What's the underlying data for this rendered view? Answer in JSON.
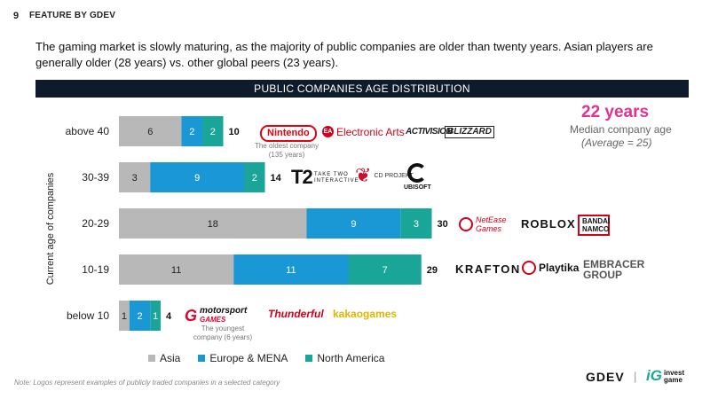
{
  "header": {
    "page_number": "9",
    "section_title": "FEATURE BY GDEV"
  },
  "intro": "The gaming market is slowly maturing, as the majority of public companies are older than twenty years. Asian players are generally older (28 years) vs. other global peers (23 years).",
  "chart_data": {
    "type": "bar",
    "orientation": "horizontal",
    "stacked": true,
    "title": "PUBLIC COMPANIES AGE DISTRIBUTION",
    "ylabel": "Current age of companies",
    "xlabel": "",
    "categories": [
      "above 40",
      "30-39",
      "20-29",
      "10-19",
      "below 10"
    ],
    "series": [
      {
        "name": "Asia",
        "values": [
          6,
          3,
          18,
          11,
          1
        ]
      },
      {
        "name": "Europe & MENA",
        "values": [
          2,
          9,
          9,
          11,
          2
        ]
      },
      {
        "name": "North America",
        "values": [
          2,
          2,
          3,
          7,
          1
        ]
      }
    ],
    "totals": [
      10,
      14,
      30,
      29,
      4
    ],
    "colors": [
      "#b8b8b8",
      "#1a98d5",
      "#19a598"
    ],
    "legend_position": "bottom",
    "grid": false
  },
  "median": {
    "value": "22 years",
    "label": "Median company age",
    "average": "(Average = 25)"
  },
  "logos": {
    "above40": [
      "Nintendo",
      "Electronic Arts",
      "ACTIVISION",
      "BLIZZARD"
    ],
    "above40_note": "The oldest company (135 years)",
    "r30_39": [
      "T2",
      "TAKE TWO INTERACTIVE",
      "CD PROJEKT",
      "UBISOFT"
    ],
    "r20_29": [
      "NetEase Games",
      "ROBLOX",
      "BANDAI NAMCO"
    ],
    "r10_19": [
      "KRAFTON",
      "Playtika",
      "EMBRACER GROUP"
    ],
    "below10": [
      "motorsport",
      "GAMES",
      "Thunderful",
      "kakaogames"
    ],
    "below10_note": "The youngest company (6 years)",
    "ea_badge": "EA"
  },
  "footer": {
    "note": "Note: Logos represent examples of publicly traded companies in a selected category",
    "brand_gdev": "GDEV",
    "separator": "|",
    "brand_ig_mark": "iG",
    "brand_ig_line1": "invest",
    "brand_ig_line2": "game"
  }
}
